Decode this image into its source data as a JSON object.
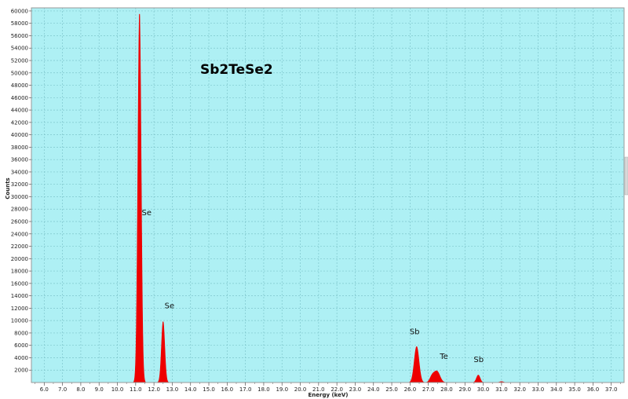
{
  "colors": {
    "plot_background": "#aef0f4",
    "spectrum_fill": "#ee0000",
    "grid": "#7fc6cc",
    "frame": "#9a9a9a"
  },
  "chart_data": {
    "type": "area",
    "title": "Sb2TeSe2",
    "xlabel": "Energy (keV)",
    "ylabel": "Counts",
    "xlim": [
      5.3,
      37.7
    ],
    "ylim": [
      0,
      60500
    ],
    "grid": true,
    "x_ticks": [
      "6.0",
      "7.0",
      "8.0",
      "9.0",
      "10.0",
      "11.0",
      "12.0",
      "13.0",
      "14.0",
      "15.0",
      "16.0",
      "17.0",
      "18.0",
      "19.0",
      "20.0",
      "21.0",
      "22.0",
      "23.0",
      "24.0",
      "25.0",
      "26.0",
      "27.0",
      "28.0",
      "29.0",
      "30.0",
      "31.0",
      "32.0",
      "33.0",
      "34.0",
      "35.0",
      "36.0",
      "37.0"
    ],
    "y_ticks": [
      "2000",
      "4000",
      "6000",
      "8000",
      "10000",
      "12000",
      "14000",
      "16000",
      "18000",
      "20000",
      "22000",
      "24000",
      "26000",
      "28000",
      "30000",
      "32000",
      "34000",
      "36000",
      "38000",
      "40000",
      "42000",
      "44000",
      "46000",
      "48000",
      "50000",
      "52000",
      "54000",
      "56000",
      "58000",
      "60000"
    ],
    "peaks": [
      {
        "label": "Se",
        "energy": 11.21,
        "counts": 59500,
        "width": 0.09
      },
      {
        "label": "Se",
        "energy": 12.5,
        "counts": 9800,
        "width": 0.09
      },
      {
        "label": "Sb",
        "energy": 26.36,
        "counts": 5800,
        "width": 0.13
      },
      {
        "label": "Te",
        "energy": 27.47,
        "counts": 1800,
        "width": 0.16
      },
      {
        "label": "Sb",
        "energy": 29.73,
        "counts": 1200,
        "width": 0.1
      }
    ],
    "minor_peaks": [
      {
        "energy": 27.2,
        "counts": 900,
        "width": 0.12
      },
      {
        "energy": 31.0,
        "counts": 150,
        "width": 0.1
      }
    ],
    "peak_labels": [
      {
        "text": "Se",
        "energy": 11.6,
        "counts": 27000
      },
      {
        "text": "Se",
        "energy": 12.85,
        "counts": 12000
      },
      {
        "text": "Sb",
        "energy": 26.25,
        "counts": 7800
      },
      {
        "text": "Te",
        "energy": 27.85,
        "counts": 3800
      },
      {
        "text": "Sb",
        "energy": 29.75,
        "counts": 3300
      }
    ]
  }
}
